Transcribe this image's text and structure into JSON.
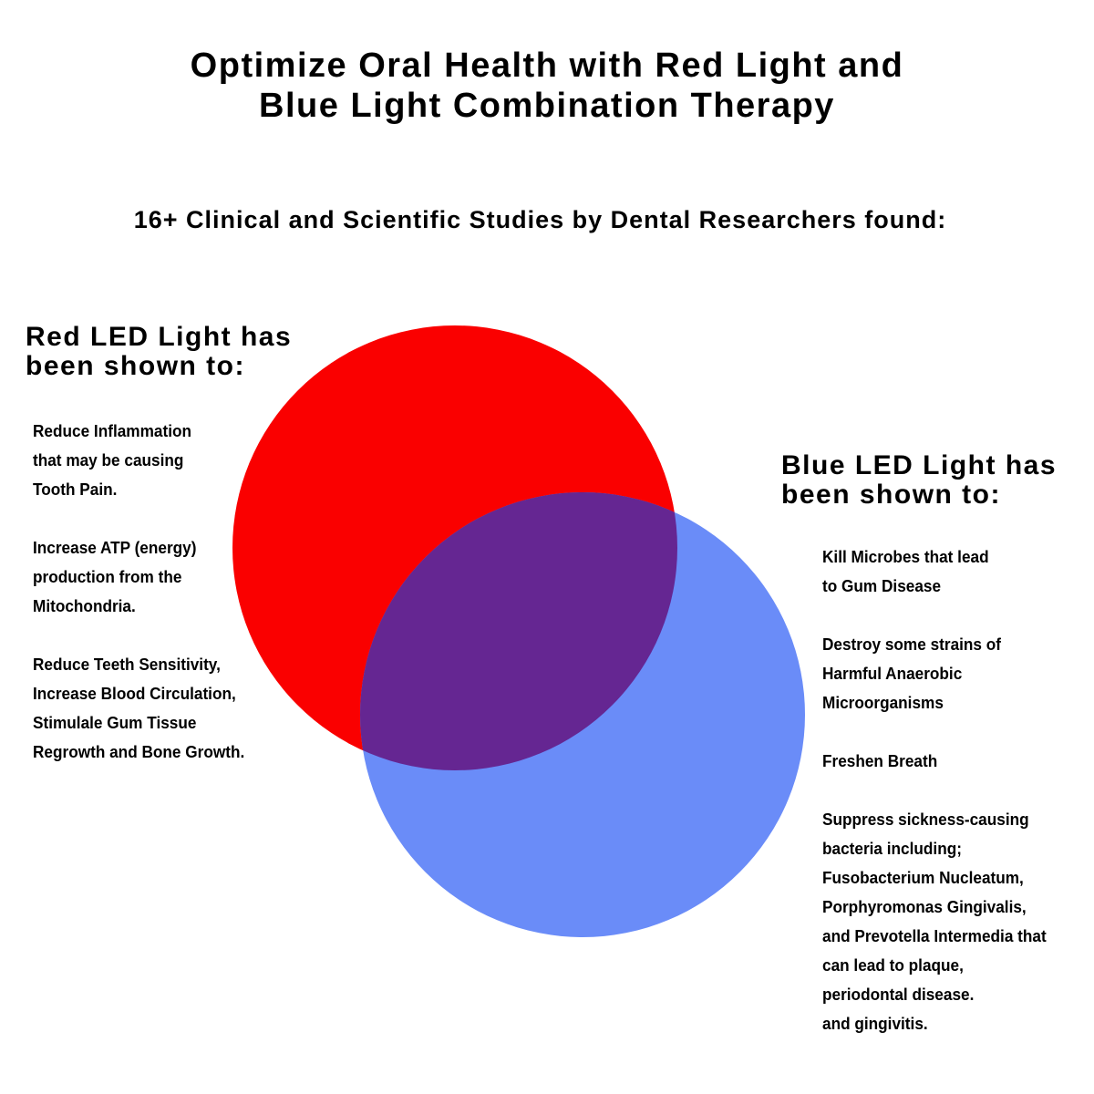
{
  "title_lines": [
    "Optimize Oral Health with Red Light and",
    "Blue Light Combination Therapy"
  ],
  "subtitle": "16+ Clinical and Scientific Studies by Dental Researchers found:",
  "red": {
    "heading_lines": [
      "Red LED Light has",
      "been shown to:"
    ],
    "color": "#fa0000",
    "lines": [
      "Reduce Inflammation",
      "that may be causing",
      "Tooth Pain.",
      "",
      "Increase ATP (energy)",
      "production from the",
      "Mitochondria.",
      "",
      "Reduce Teeth Sensitivity,",
      "Increase Blood Circulation,",
      "Stimulale Gum Tissue",
      "Regrowth and Bone Growth."
    ]
  },
  "blue": {
    "heading_lines": [
      "Blue LED Light has",
      "been shown to:"
    ],
    "color": "#6a8cf8",
    "lines": [
      "Kill Microbes that lead",
      "to Gum Disease",
      "",
      "Destroy some strains of",
      "Harmful Anaerobic",
      "Microorganisms",
      "",
      "Freshen Breath",
      "",
      "Suppress sickness-causing",
      "bacteria including;",
      "Fusobacterium Nucleatum,",
      "Porphyromonas Gingivalis,",
      "and Prevotella Intermedia that",
      "can lead to plaque,",
      "periodontal disease.",
      "and gingivitis."
    ]
  },
  "overlap_color": "#652692"
}
